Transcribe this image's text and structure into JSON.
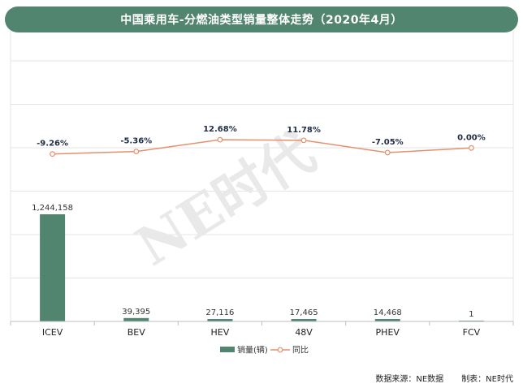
{
  "chart_data": {
    "type": "bar",
    "title": "中国乘用车-分燃油类型销量整体走势（2020年4月）",
    "categories": [
      "ICEV",
      "BEV",
      "HEV",
      "48V",
      "PHEV",
      "FCV"
    ],
    "series": [
      {
        "name": "销量(辆)",
        "type": "bar",
        "values": [
          1244158,
          39395,
          27116,
          17465,
          14468,
          1
        ],
        "labels": [
          "1,244,158",
          "39,395",
          "27,116",
          "17,465",
          "14,468",
          "1"
        ],
        "color": "#52856f"
      },
      {
        "name": "同比",
        "type": "line",
        "values": [
          -9.26,
          -5.36,
          12.68,
          11.78,
          -7.05,
          0.0
        ],
        "labels": [
          "-9.26%",
          "-5.36%",
          "12.68%",
          "11.78%",
          "-7.05%",
          "0.00%"
        ],
        "color": "#e3926d"
      }
    ],
    "legend": "bottom",
    "grid": true
  },
  "watermark": "NE时代",
  "footer": {
    "source": "数据来源：NE数据",
    "maker": "制表：NE时代"
  }
}
